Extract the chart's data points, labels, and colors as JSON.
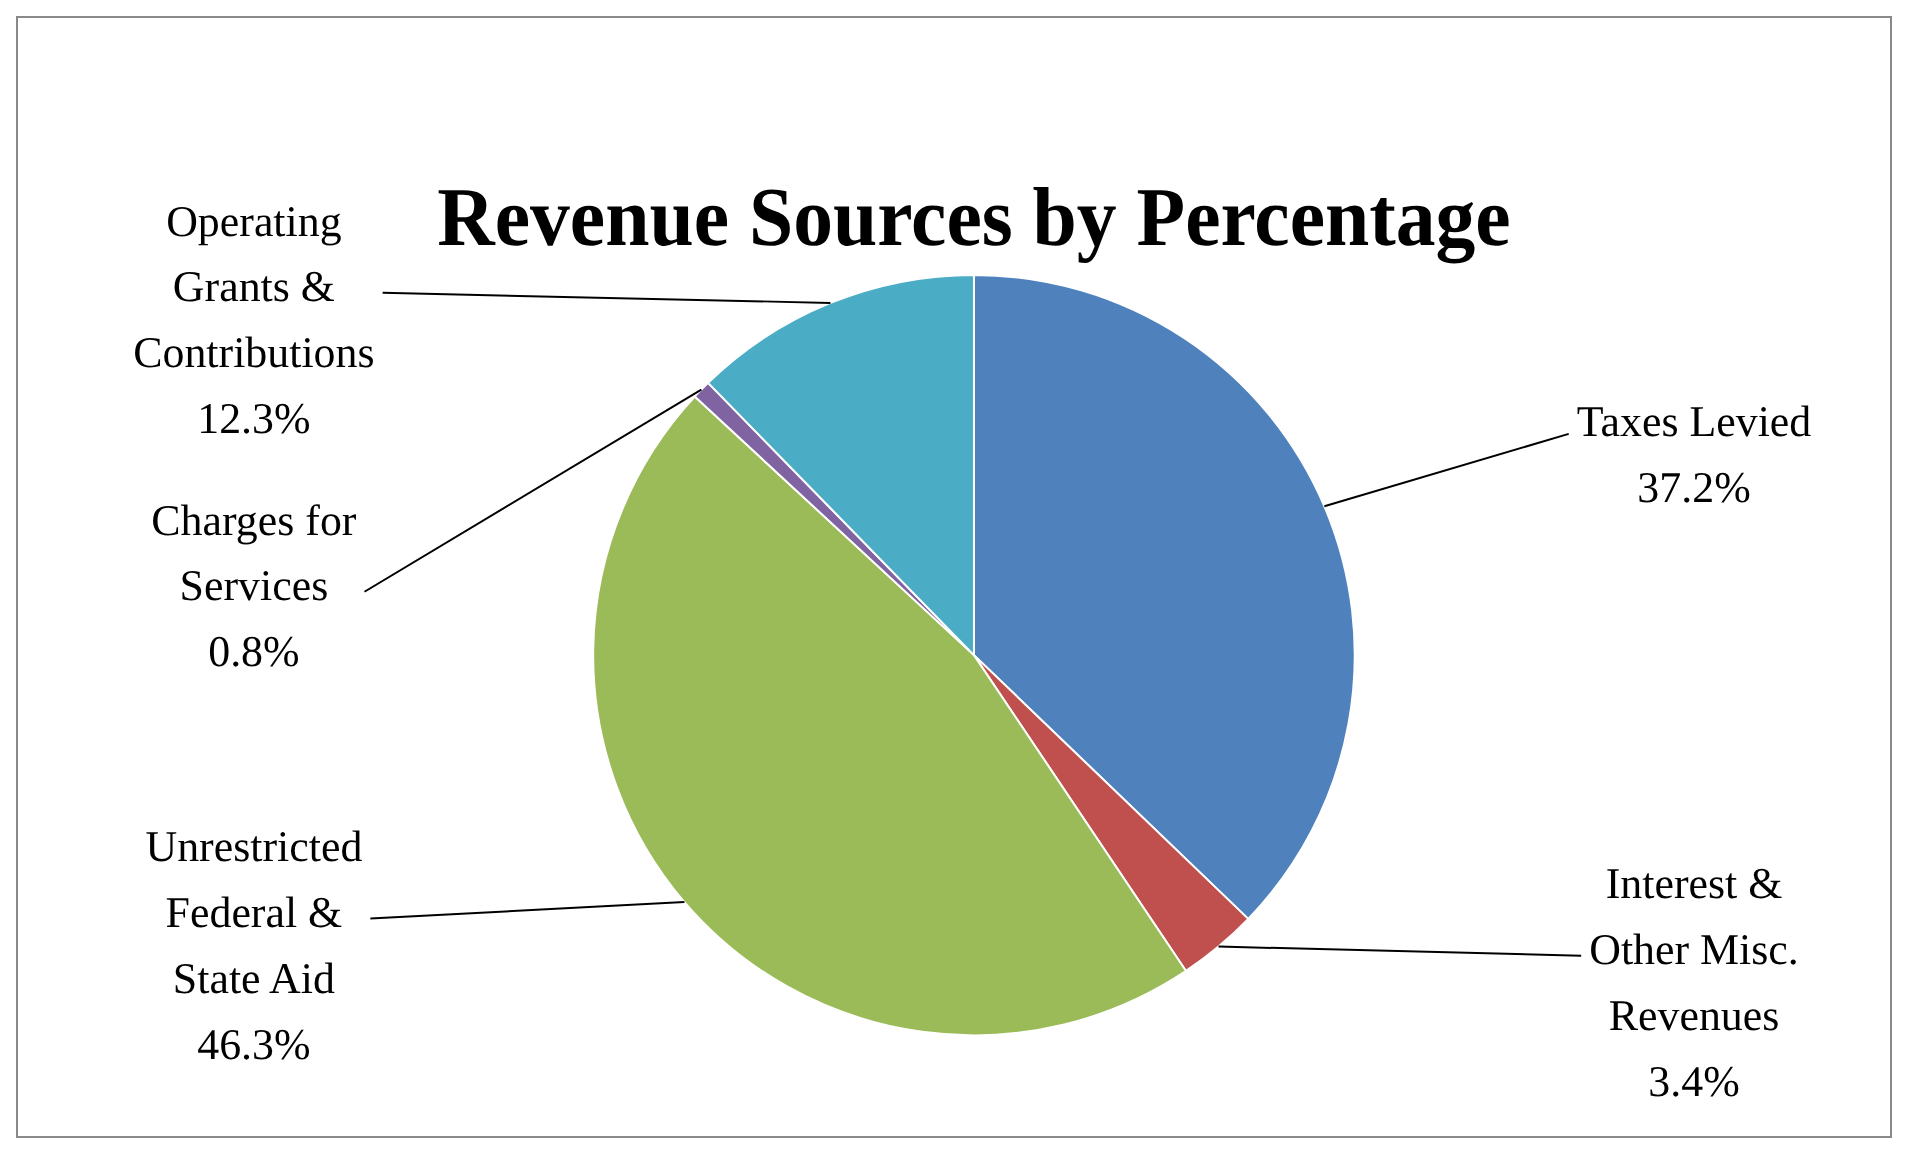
{
  "chart_data": {
    "type": "pie",
    "title": "Revenue Sources by Percentage",
    "categories": [
      "Taxes Levied",
      "Interest & Other Misc. Revenues",
      "Unrestricted Federal & State Aid",
      "Charges for Services",
      "Operating Grants & Contributions"
    ],
    "values": [
      37.2,
      3.4,
      46.3,
      0.8,
      12.3
    ],
    "value_labels": [
      "37.2%",
      "3.4%",
      "46.3%",
      "0.8%",
      "12.3%"
    ],
    "colors": [
      "#4f81bd",
      "#c0504d",
      "#9bbb59",
      "#8064a2",
      "#4bacc6"
    ],
    "legend": false
  }
}
